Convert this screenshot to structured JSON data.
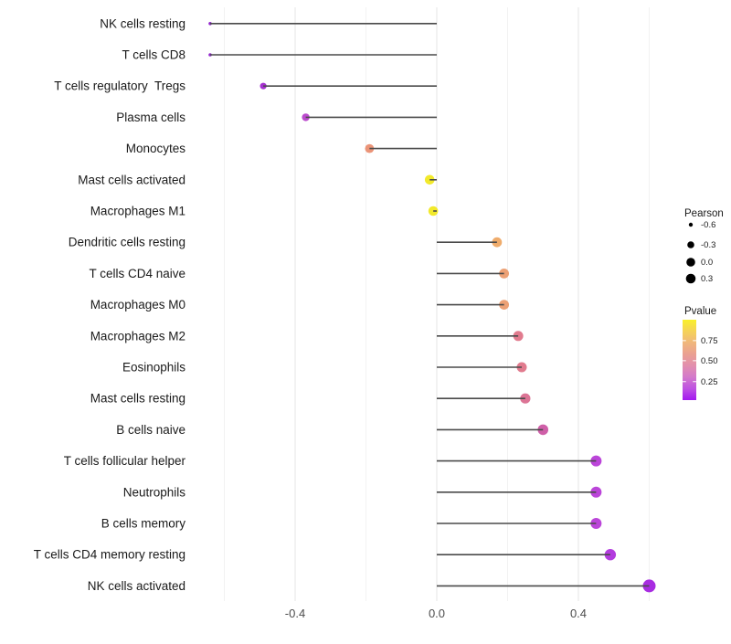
{
  "chart_data": {
    "type": "scatter",
    "subtype": "lollipop",
    "title": "",
    "xlabel": "",
    "ylabel": "",
    "x_range": [
      -0.69,
      0.655
    ],
    "x_ticks": [
      {
        "value": -0.4,
        "label": "-0.4"
      },
      {
        "value": 0.0,
        "label": "0.0"
      },
      {
        "value": 0.4,
        "label": "0.4"
      }
    ],
    "x_gridlines": [
      {
        "value": -0.6,
        "major": false
      },
      {
        "value": -0.4,
        "major": true
      },
      {
        "value": -0.2,
        "major": false
      },
      {
        "value": 0.0,
        "major": true
      },
      {
        "value": 0.2,
        "major": false
      },
      {
        "value": 0.4,
        "major": true
      },
      {
        "value": 0.6,
        "major": false
      }
    ],
    "rows": [
      {
        "label": "NK cells resting",
        "pearson": -0.64,
        "pvalue": 0.05,
        "color": "#9327CE",
        "radius_px": 1.8
      },
      {
        "label": "T cells CD8",
        "pearson": -0.64,
        "pvalue": 0.05,
        "color": "#9327CE",
        "radius_px": 1.8
      },
      {
        "label": "T cells regulatory  Tregs",
        "pearson": -0.49,
        "pvalue": 0.12,
        "color": "#A531D0",
        "radius_px": 3.6
      },
      {
        "label": "Plasma cells",
        "pearson": -0.37,
        "pvalue": 0.22,
        "color": "#BB4BCD",
        "radius_px": 4.2
      },
      {
        "label": "Monocytes",
        "pearson": -0.19,
        "pvalue": 0.55,
        "color": "#EB9478",
        "radius_px": 4.9
      },
      {
        "label": "Mast cells activated",
        "pearson": -0.02,
        "pvalue": 0.88,
        "color": "#F2E92B",
        "radius_px": 5.3
      },
      {
        "label": "Macrophages M1",
        "pearson": -0.01,
        "pvalue": 0.88,
        "color": "#F2E92B",
        "radius_px": 5.3
      },
      {
        "label": "Dendritic cells resting",
        "pearson": 0.17,
        "pvalue": 0.62,
        "color": "#EFAC6C",
        "radius_px": 5.4
      },
      {
        "label": "T cells CD4 naive",
        "pearson": 0.19,
        "pvalue": 0.58,
        "color": "#ECA175",
        "radius_px": 5.4
      },
      {
        "label": "Macrophages M0",
        "pearson": 0.19,
        "pvalue": 0.58,
        "color": "#ECA175",
        "radius_px": 5.4
      },
      {
        "label": "Macrophages M2",
        "pearson": 0.23,
        "pvalue": 0.43,
        "color": "#E17B8E",
        "radius_px": 5.5
      },
      {
        "label": "Eosinophils",
        "pearson": 0.24,
        "pvalue": 0.43,
        "color": "#E17B8E",
        "radius_px": 5.5
      },
      {
        "label": "Mast cells resting",
        "pearson": 0.25,
        "pvalue": 0.4,
        "color": "#DC7495",
        "radius_px": 5.6
      },
      {
        "label": "B cells naive",
        "pearson": 0.3,
        "pvalue": 0.3,
        "color": "#CF5FA8",
        "radius_px": 5.8
      },
      {
        "label": "T cells follicular helper",
        "pearson": 0.45,
        "pvalue": 0.15,
        "color": "#BB45D9",
        "radius_px": 6.0
      },
      {
        "label": "Neutrophils",
        "pearson": 0.45,
        "pvalue": 0.15,
        "color": "#BB45D9",
        "radius_px": 6.0
      },
      {
        "label": "B cells memory",
        "pearson": 0.45,
        "pvalue": 0.15,
        "color": "#BB45D9",
        "radius_px": 6.0
      },
      {
        "label": "T cells CD4 memory resting",
        "pearson": 0.49,
        "pvalue": 0.12,
        "color": "#B33CDE",
        "radius_px": 6.2
      },
      {
        "label": "NK cells activated",
        "pearson": 0.6,
        "pvalue": 0.08,
        "color": "#A82CE1",
        "radius_px": 7.0
      }
    ],
    "legend_size": {
      "title": "Pearson",
      "dot_color": "#000000",
      "entries": [
        {
          "label": "-0.6",
          "radius_px": 2.2
        },
        {
          "label": "-0.3",
          "radius_px": 3.8
        },
        {
          "label": "0.0",
          "radius_px": 4.8
        },
        {
          "label": "0.3",
          "radius_px": 5.3
        }
      ]
    },
    "legend_color": {
      "title": "Pvalue",
      "ticks": [
        {
          "label": "0.75",
          "frac_from_top": 0.26
        },
        {
          "label": "0.50",
          "frac_from_top": 0.51
        },
        {
          "label": "0.25",
          "frac_from_top": 0.77
        }
      ],
      "gradient_top_to_bottom": [
        "#F9F02A",
        "#F5D258",
        "#F0B77C",
        "#EAA092",
        "#E28FAE",
        "#D379CB",
        "#BE52E2",
        "#A318F0"
      ]
    },
    "colors": {
      "stem": "#4A4A4A",
      "grid_major": "#E4E4E4",
      "grid_minor": "#F2F2F2",
      "axis_text": "#4D4D4D",
      "label_text": "#1A1A1A",
      "background": "#FFFFFF"
    }
  }
}
